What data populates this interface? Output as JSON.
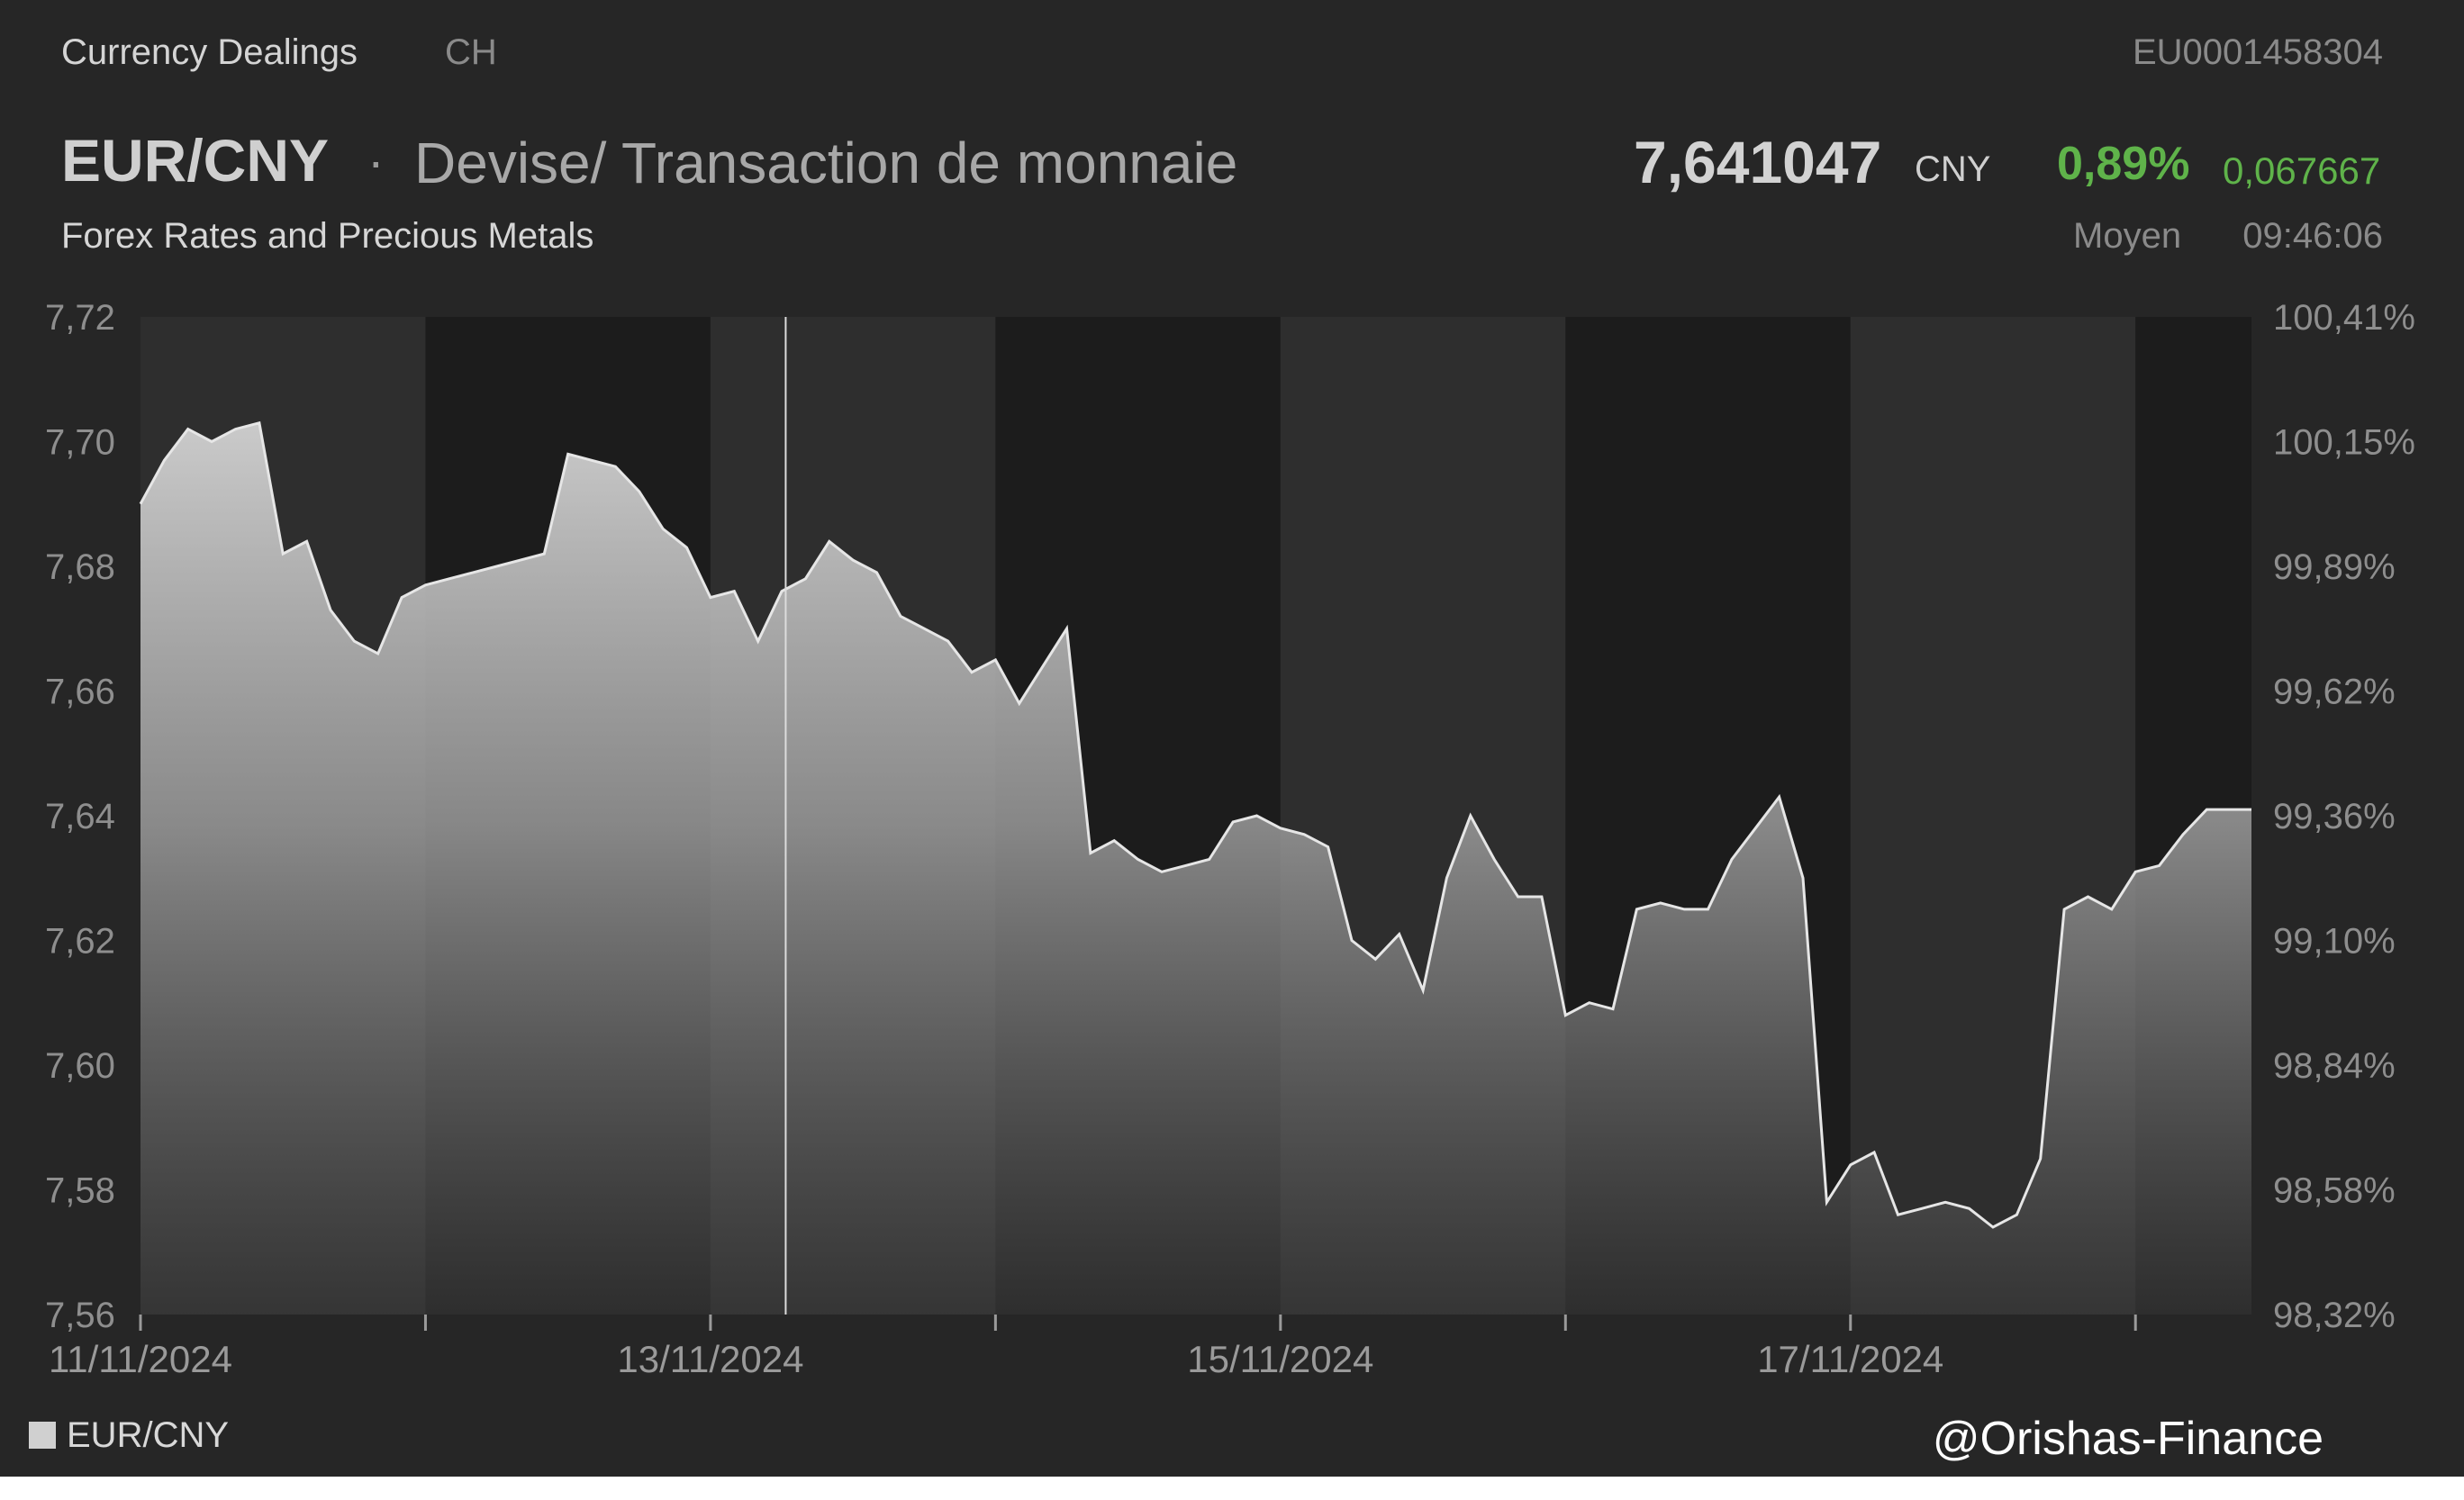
{
  "header": {
    "category": "Currency Dealings",
    "exchange": "CH",
    "isin": "EU0001458304",
    "symbol": "EUR/CNY",
    "separator": "·",
    "name": "Devise/ Transaction de monnaie",
    "subtitle": "Forex Rates and Precious Metals",
    "price": "7,641047",
    "currency": "CNY",
    "change_pct": "0,89%",
    "change_abs": "0,067667",
    "price_label": "Moyen",
    "time": "09:46:06"
  },
  "watermark": "@Orishas-Finance",
  "colors": {
    "background": "#262626",
    "band_light": "#2e2e2e",
    "band_dark": "#1c1c1c",
    "line": "#e6e6e6",
    "positive": "#5fb34a"
  },
  "chart_data": {
    "type": "area",
    "legend": [
      "EUR/CNY"
    ],
    "legend_position": "bottom-left",
    "grid": false,
    "xlim": [
      "11/11/2024 00:00",
      "18/11/2024 09:46"
    ],
    "ylim": [
      7.56,
      7.72
    ],
    "y_ticks": [
      "7,72",
      "7,70",
      "7,68",
      "7,66",
      "7,64",
      "7,62",
      "7,60",
      "7,58",
      "7,56"
    ],
    "y2_ticks": [
      "100,41%",
      "100,15%",
      "99,89%",
      "99,62%",
      "99,36%",
      "99,10%",
      "98,84%",
      "98,58%",
      "98,32%"
    ],
    "x_ticks": [
      "11/11/2024",
      "13/11/2024",
      "15/11/2024",
      "17/11/2024"
    ],
    "cursor_x": "13/11/2024 06:20",
    "series": [
      {
        "name": "EUR/CNY",
        "x": [
          "11/11/2024 00:00",
          "11/11/2024 02:00",
          "11/11/2024 04:00",
          "11/11/2024 06:00",
          "11/11/2024 08:00",
          "11/11/2024 10:00",
          "11/11/2024 12:00",
          "11/11/2024 14:00",
          "11/11/2024 16:00",
          "11/11/2024 18:00",
          "11/11/2024 20:00",
          "11/11/2024 22:00",
          "12/11/2024 00:00",
          "12/11/2024 02:00",
          "12/11/2024 04:00",
          "12/11/2024 06:00",
          "12/11/2024 08:00",
          "12/11/2024 10:00",
          "12/11/2024 12:00",
          "12/11/2024 14:00",
          "12/11/2024 16:00",
          "12/11/2024 18:00",
          "12/11/2024 20:00",
          "12/11/2024 22:00",
          "13/11/2024 00:00",
          "13/11/2024 02:00",
          "13/11/2024 04:00",
          "13/11/2024 06:00",
          "13/11/2024 08:00",
          "13/11/2024 10:00",
          "13/11/2024 12:00",
          "13/11/2024 14:00",
          "13/11/2024 16:00",
          "13/11/2024 18:00",
          "13/11/2024 20:00",
          "13/11/2024 22:00",
          "14/11/2024 00:00",
          "14/11/2024 02:00",
          "14/11/2024 04:00",
          "14/11/2024 06:00",
          "14/11/2024 08:00",
          "14/11/2024 10:00",
          "14/11/2024 12:00",
          "14/11/2024 14:00",
          "14/11/2024 16:00",
          "14/11/2024 18:00",
          "14/11/2024 20:00",
          "14/11/2024 22:00",
          "15/11/2024 00:00",
          "15/11/2024 02:00",
          "15/11/2024 04:00",
          "15/11/2024 06:00",
          "15/11/2024 08:00",
          "15/11/2024 10:00",
          "15/11/2024 12:00",
          "15/11/2024 14:00",
          "15/11/2024 16:00",
          "15/11/2024 18:00",
          "15/11/2024 20:00",
          "15/11/2024 22:00",
          "16/11/2024 00:00",
          "16/11/2024 02:00",
          "16/11/2024 04:00",
          "16/11/2024 06:00",
          "16/11/2024 08:00",
          "16/11/2024 10:00",
          "16/11/2024 12:00",
          "16/11/2024 14:00",
          "16/11/2024 16:00",
          "16/11/2024 18:00",
          "16/11/2024 20:00",
          "16/11/2024 22:00",
          "17/11/2024 00:00",
          "17/11/2024 02:00",
          "17/11/2024 04:00",
          "17/11/2024 06:00",
          "17/11/2024 08:00",
          "17/11/2024 10:00",
          "17/11/2024 12:00",
          "17/11/2024 14:00",
          "17/11/2024 16:00",
          "17/11/2024 18:00",
          "17/11/2024 20:00",
          "17/11/2024 22:00",
          "18/11/2024 00:00",
          "18/11/2024 02:00",
          "18/11/2024 04:00",
          "18/11/2024 06:00",
          "18/11/2024 08:00",
          "18/11/2024 09:46"
        ],
        "values": [
          7.69,
          7.697,
          7.702,
          7.7,
          7.702,
          7.703,
          7.682,
          7.684,
          7.673,
          7.668,
          7.666,
          7.675,
          7.677,
          7.678,
          7.679,
          7.68,
          7.681,
          7.682,
          7.698,
          7.697,
          7.696,
          7.692,
          7.686,
          7.683,
          7.675,
          7.676,
          7.668,
          7.676,
          7.678,
          7.684,
          7.681,
          7.679,
          7.672,
          7.67,
          7.668,
          7.663,
          7.665,
          7.658,
          7.664,
          7.67,
          7.634,
          7.636,
          7.633,
          7.631,
          7.632,
          7.633,
          7.639,
          7.64,
          7.638,
          7.637,
          7.635,
          7.62,
          7.617,
          7.621,
          7.612,
          7.63,
          7.64,
          7.633,
          7.627,
          7.627,
          7.608,
          7.61,
          7.609,
          7.625,
          7.626,
          7.625,
          7.625,
          7.633,
          7.638,
          7.643,
          7.63,
          7.578,
          7.584,
          7.586,
          7.576,
          7.577,
          7.578,
          7.577,
          7.574,
          7.576,
          7.585,
          7.625,
          7.627,
          7.625,
          7.631,
          7.632,
          7.637,
          7.641,
          7.641,
          7.641
        ]
      }
    ]
  }
}
